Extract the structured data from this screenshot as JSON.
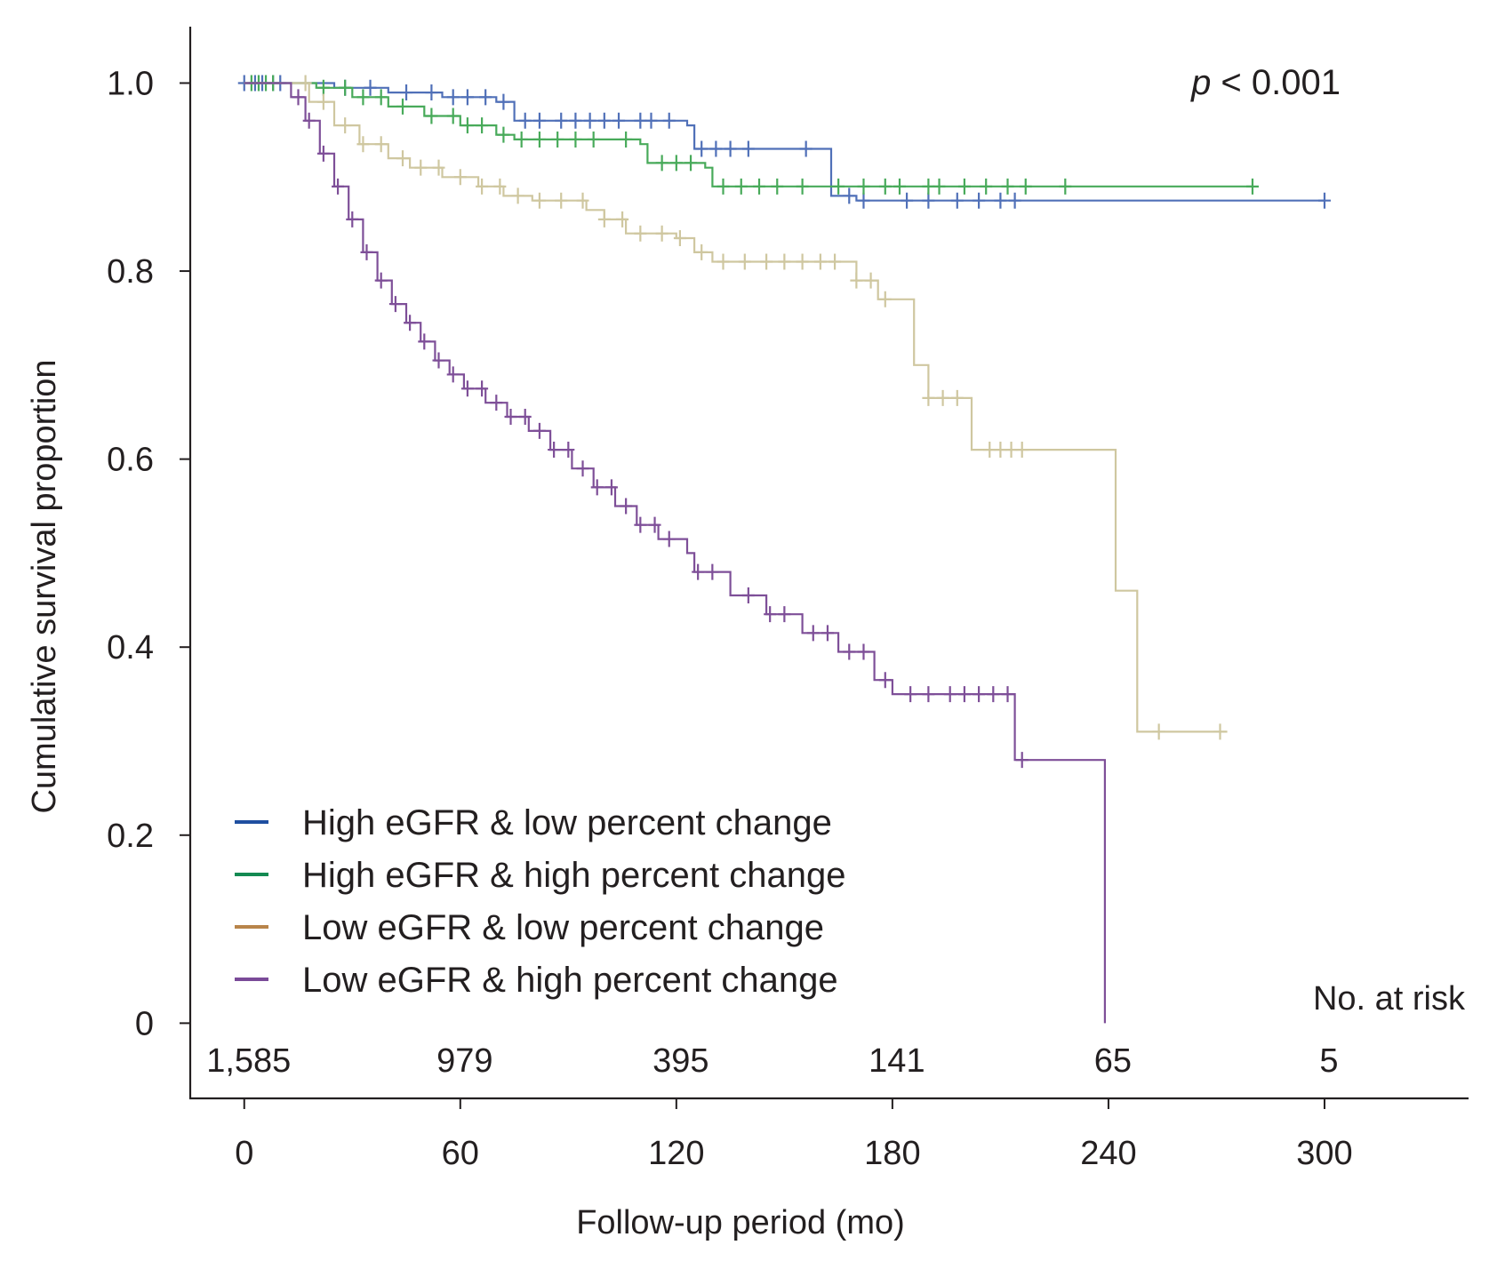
{
  "chart_data": {
    "type": "line",
    "subtype": "kaplan-meier",
    "title": "",
    "xlabel": "Follow-up period (mo)",
    "ylabel": "Cumulative survival proportion",
    "xlim": [
      -15,
      340
    ],
    "ylim": [
      -0.08,
      1.06
    ],
    "xticks": [
      0,
      60,
      120,
      180,
      240,
      300
    ],
    "xtick_labels": [
      "0",
      "60",
      "120",
      "180",
      "240",
      "300"
    ],
    "yticks": [
      0,
      0.2,
      0.4,
      0.6,
      0.8,
      1.0
    ],
    "ytick_labels": [
      "0",
      "0.2",
      "0.4",
      "0.6",
      "0.8",
      "1.0"
    ],
    "annotation": {
      "prefix": "p",
      "text": " < 0.001"
    },
    "risk_table": {
      "title": "No. at risk",
      "counts": [
        "1,585",
        "979",
        "395",
        "141",
        "65",
        "5"
      ]
    },
    "series": [
      {
        "name": "High eGFR & low percent change",
        "legend_color": "#1f4fa0",
        "line_color": "#5070b8",
        "steps": [
          [
            0,
            1.0
          ],
          [
            20,
            1.0
          ],
          [
            25,
            0.995
          ],
          [
            40,
            0.99
          ],
          [
            55,
            0.985
          ],
          [
            70,
            0.98
          ],
          [
            75,
            0.96
          ],
          [
            105,
            0.96
          ],
          [
            123,
            0.955
          ],
          [
            125,
            0.93
          ],
          [
            162,
            0.93
          ],
          [
            163,
            0.88
          ],
          [
            170,
            0.875
          ],
          [
            300,
            0.875
          ]
        ],
        "censors": [
          0,
          3,
          5,
          8,
          10,
          28,
          35,
          45,
          52,
          58,
          62,
          67,
          72,
          78,
          82,
          88,
          92,
          96,
          100,
          104,
          110,
          113,
          118,
          127,
          131,
          135,
          140,
          156,
          168,
          172,
          184,
          190,
          198,
          204,
          210,
          214,
          300
        ]
      },
      {
        "name": "High eGFR & high percent change",
        "legend_color": "#138a52",
        "line_color": "#48aa5a",
        "steps": [
          [
            0,
            1.0
          ],
          [
            12,
            1.0
          ],
          [
            20,
            0.995
          ],
          [
            30,
            0.985
          ],
          [
            40,
            0.975
          ],
          [
            50,
            0.965
          ],
          [
            60,
            0.955
          ],
          [
            70,
            0.945
          ],
          [
            75,
            0.94
          ],
          [
            110,
            0.935
          ],
          [
            112,
            0.915
          ],
          [
            128,
            0.91
          ],
          [
            130,
            0.89
          ],
          [
            280,
            0.89
          ]
        ],
        "censors": [
          2,
          4,
          6,
          8,
          22,
          28,
          33,
          38,
          44,
          52,
          58,
          62,
          66,
          72,
          77,
          82,
          87,
          92,
          97,
          106,
          116,
          120,
          124,
          133,
          138,
          143,
          148,
          155,
          165,
          172,
          178,
          182,
          190,
          193,
          200,
          206,
          212,
          217,
          228,
          280
        ]
      },
      {
        "name": "Low eGFR & low percent change",
        "legend_color": "#b8844a",
        "line_color": "#cfc7a0",
        "steps": [
          [
            0,
            1.0
          ],
          [
            12,
            1.0
          ],
          [
            18,
            0.98
          ],
          [
            25,
            0.955
          ],
          [
            32,
            0.935
          ],
          [
            40,
            0.92
          ],
          [
            46,
            0.91
          ],
          [
            55,
            0.9
          ],
          [
            65,
            0.89
          ],
          [
            72,
            0.88
          ],
          [
            80,
            0.875
          ],
          [
            95,
            0.865
          ],
          [
            100,
            0.855
          ],
          [
            106,
            0.84
          ],
          [
            120,
            0.835
          ],
          [
            125,
            0.82
          ],
          [
            130,
            0.81
          ],
          [
            160,
            0.81
          ],
          [
            170,
            0.79
          ],
          [
            176,
            0.77
          ],
          [
            182,
            0.77
          ],
          [
            186,
            0.7
          ],
          [
            190,
            0.665
          ],
          [
            200,
            0.665
          ],
          [
            202,
            0.61
          ],
          [
            235,
            0.61
          ],
          [
            242,
            0.46
          ],
          [
            248,
            0.31
          ],
          [
            273,
            0.31
          ]
        ],
        "censors": [
          17,
          22,
          28,
          33,
          38,
          44,
          49,
          54,
          60,
          66,
          71,
          76,
          82,
          88,
          94,
          100,
          105,
          110,
          116,
          121,
          127,
          133,
          139,
          145,
          150,
          155,
          160,
          164,
          170,
          174,
          178,
          190,
          194,
          198,
          207,
          210,
          213,
          216,
          254,
          271
        ]
      },
      {
        "name": "Low eGFR & high percent change",
        "legend_color": "#7a4a98",
        "line_color": "#7e4f98",
        "steps": [
          [
            0,
            1.0
          ],
          [
            10,
            1.0
          ],
          [
            13,
            0.985
          ],
          [
            17,
            0.96
          ],
          [
            21,
            0.925
          ],
          [
            25,
            0.89
          ],
          [
            29,
            0.855
          ],
          [
            33,
            0.82
          ],
          [
            37,
            0.79
          ],
          [
            41,
            0.765
          ],
          [
            45,
            0.745
          ],
          [
            49,
            0.725
          ],
          [
            53,
            0.705
          ],
          [
            57,
            0.69
          ],
          [
            61,
            0.675
          ],
          [
            67,
            0.66
          ],
          [
            73,
            0.645
          ],
          [
            79,
            0.63
          ],
          [
            85,
            0.61
          ],
          [
            91,
            0.59
          ],
          [
            97,
            0.57
          ],
          [
            103,
            0.55
          ],
          [
            109,
            0.53
          ],
          [
            115,
            0.515
          ],
          [
            123,
            0.5
          ],
          [
            125,
            0.48
          ],
          [
            135,
            0.455
          ],
          [
            145,
            0.435
          ],
          [
            155,
            0.415
          ],
          [
            165,
            0.395
          ],
          [
            175,
            0.365
          ],
          [
            180,
            0.35
          ],
          [
            212,
            0.35
          ],
          [
            214,
            0.28
          ],
          [
            238,
            0.28
          ],
          [
            239,
            0.0
          ]
        ],
        "censors": [
          15,
          18,
          22,
          26,
          30,
          34,
          38,
          42,
          46,
          50,
          54,
          58,
          62,
          66,
          70,
          74,
          78,
          82,
          86,
          90,
          94,
          98,
          102,
          106,
          110,
          114,
          118,
          126,
          130,
          140,
          146,
          150,
          158,
          162,
          168,
          172,
          178,
          185,
          190,
          196,
          200,
          204,
          208,
          212,
          216
        ]
      }
    ]
  }
}
